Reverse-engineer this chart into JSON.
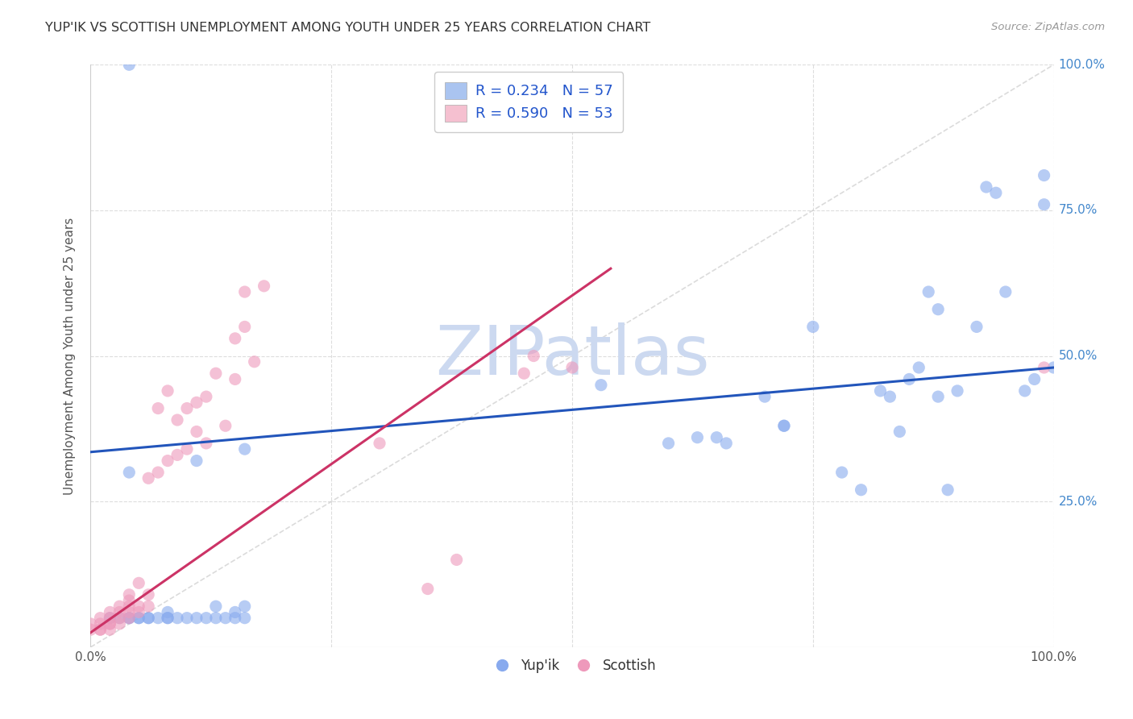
{
  "title": "YUP'IK VS SCOTTISH UNEMPLOYMENT AMONG YOUTH UNDER 25 YEARS CORRELATION CHART",
  "source": "Source: ZipAtlas.com",
  "ylabel": "Unemployment Among Youth under 25 years",
  "xlim": [
    0,
    1
  ],
  "ylim": [
    0,
    1
  ],
  "background_color": "#ffffff",
  "watermark_text": "ZIPatlas",
  "watermark_color": "#ccd9f0",
  "grid_color": "#dddddd",
  "grid_style": "--",
  "diagonal_color": "#cccccc",
  "diagonal_style": "--",
  "legend_blue_label": "R = 0.234   N = 57",
  "legend_pink_label": "R = 0.590   N = 53",
  "legend_blue_color": "#aac4f0",
  "legend_pink_color": "#f5c0d0",
  "blue_color": "#88aaee",
  "blue_trend_color": "#2255bb",
  "pink_color": "#ee99bb",
  "pink_trend_color": "#cc3366",
  "ytick_labels": [
    "",
    "25.0%",
    "50.0%",
    "75.0%",
    "100.0%"
  ],
  "ytick_right_labels": [
    "25.0%",
    "50.0%",
    "75.0%",
    "100.0%"
  ],
  "blue_x": [
    0.02,
    0.03,
    0.04,
    0.04,
    0.05,
    0.05,
    0.06,
    0.06,
    0.07,
    0.08,
    0.08,
    0.09,
    0.1,
    0.11,
    0.12,
    0.13,
    0.14,
    0.15,
    0.16,
    0.04,
    0.08,
    0.11,
    0.13,
    0.15,
    0.16,
    0.16,
    0.53,
    0.6,
    0.63,
    0.65,
    0.66,
    0.7,
    0.72,
    0.72,
    0.75,
    0.78,
    0.8,
    0.82,
    0.83,
    0.84,
    0.85,
    0.86,
    0.87,
    0.88,
    0.88,
    0.89,
    0.9,
    0.92,
    0.93,
    0.94,
    0.95,
    0.97,
    0.98,
    0.99,
    0.99,
    1.0,
    0.04
  ],
  "blue_y": [
    0.05,
    0.05,
    0.05,
    0.05,
    0.05,
    0.05,
    0.05,
    0.05,
    0.05,
    0.05,
    0.05,
    0.05,
    0.05,
    0.05,
    0.05,
    0.05,
    0.05,
    0.05,
    0.05,
    0.3,
    0.06,
    0.32,
    0.07,
    0.06,
    0.34,
    0.07,
    0.45,
    0.35,
    0.36,
    0.36,
    0.35,
    0.43,
    0.38,
    0.38,
    0.55,
    0.3,
    0.27,
    0.44,
    0.43,
    0.37,
    0.46,
    0.48,
    0.61,
    0.58,
    0.43,
    0.27,
    0.44,
    0.55,
    0.79,
    0.78,
    0.61,
    0.44,
    0.46,
    0.76,
    0.81,
    0.48,
    1.0
  ],
  "pink_x": [
    0.0,
    0.0,
    0.01,
    0.01,
    0.01,
    0.01,
    0.02,
    0.02,
    0.02,
    0.02,
    0.02,
    0.03,
    0.03,
    0.03,
    0.03,
    0.04,
    0.04,
    0.04,
    0.04,
    0.04,
    0.05,
    0.05,
    0.05,
    0.06,
    0.06,
    0.06,
    0.07,
    0.07,
    0.08,
    0.08,
    0.09,
    0.09,
    0.1,
    0.1,
    0.11,
    0.11,
    0.12,
    0.12,
    0.13,
    0.14,
    0.15,
    0.15,
    0.16,
    0.16,
    0.17,
    0.18,
    0.3,
    0.35,
    0.38,
    0.45,
    0.46,
    0.5,
    0.99
  ],
  "pink_y": [
    0.03,
    0.04,
    0.03,
    0.03,
    0.04,
    0.05,
    0.03,
    0.04,
    0.04,
    0.05,
    0.06,
    0.04,
    0.05,
    0.06,
    0.07,
    0.05,
    0.06,
    0.07,
    0.08,
    0.09,
    0.06,
    0.07,
    0.11,
    0.07,
    0.09,
    0.29,
    0.3,
    0.41,
    0.32,
    0.44,
    0.33,
    0.39,
    0.34,
    0.41,
    0.37,
    0.42,
    0.35,
    0.43,
    0.47,
    0.38,
    0.46,
    0.53,
    0.61,
    0.55,
    0.49,
    0.62,
    0.35,
    0.1,
    0.15,
    0.47,
    0.5,
    0.48,
    0.48
  ]
}
